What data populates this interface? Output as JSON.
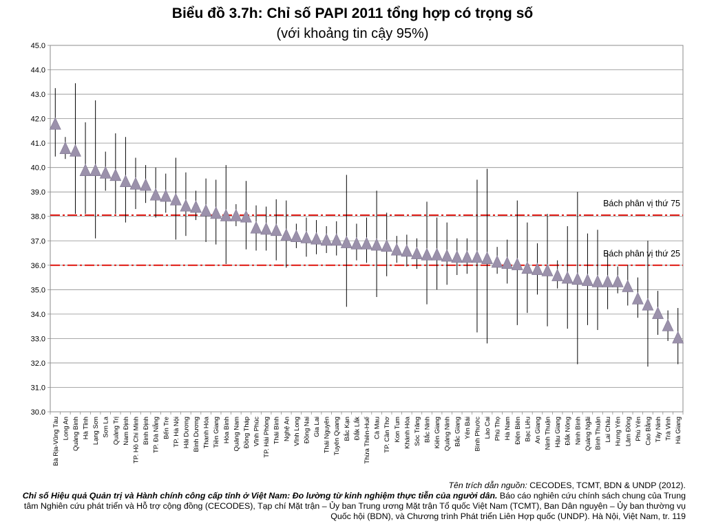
{
  "chart_data": {
    "type": "scatter",
    "title": "Biểu đồ 3.7h: Chỉ số PAPI 2011 tổng hợp có trọng số",
    "subtitle": "(với khoảng tin cậy 95%)",
    "ylim": [
      30,
      45
    ],
    "yticks": [
      "30.0",
      "31.0",
      "32.0",
      "33.0",
      "34.0",
      "35.0",
      "36.0",
      "37.0",
      "38.0",
      "39.0",
      "40.0",
      "41.0",
      "42.0",
      "43.0",
      "44.0",
      "45.0"
    ],
    "grid": true,
    "marker": "triangle",
    "marker_color": "#9b91ab",
    "errorbar_color": "#000000",
    "reference_color": "#e0201a",
    "reference_lines": [
      {
        "label": "Bách phân vị thứ 75",
        "y": 38.05
      },
      {
        "label": "Bách phân vị thứ 25",
        "y": 36.0
      }
    ],
    "points": [
      {
        "name": "Bà Rịa-Vũng Tàu",
        "y": 41.8,
        "lo": 40.45,
        "hi": 43.25
      },
      {
        "name": "Long An",
        "y": 40.8,
        "lo": 40.35,
        "hi": 41.25
      },
      {
        "name": "Quảng Bình",
        "y": 40.7,
        "lo": 38.1,
        "hi": 43.45
      },
      {
        "name": "Hà Tĩnh",
        "y": 39.9,
        "lo": 38.1,
        "hi": 41.85
      },
      {
        "name": "Lạng Sơn",
        "y": 39.9,
        "lo": 37.1,
        "hi": 42.75
      },
      {
        "name": "Sơn La",
        "y": 39.8,
        "lo": 39.05,
        "hi": 40.65
      },
      {
        "name": "Quảng Trị",
        "y": 39.7,
        "lo": 38.1,
        "hi": 41.4
      },
      {
        "name": "Nam Định",
        "y": 39.45,
        "lo": 37.75,
        "hi": 41.25
      },
      {
        "name": "TP. Hồ Chí Minh",
        "y": 39.35,
        "lo": 38.3,
        "hi": 40.4
      },
      {
        "name": "Bình Định",
        "y": 39.3,
        "lo": 38.55,
        "hi": 40.1
      },
      {
        "name": "TP. Đà Nẵng",
        "y": 38.9,
        "lo": 37.95,
        "hi": 40.0
      },
      {
        "name": "Bến Tre",
        "y": 38.85,
        "lo": 38.15,
        "hi": 39.75
      },
      {
        "name": "TP. Hà Nội",
        "y": 38.7,
        "lo": 37.05,
        "hi": 40.4
      },
      {
        "name": "Hải Dương",
        "y": 38.45,
        "lo": 37.2,
        "hi": 39.8
      },
      {
        "name": "Bình Dương",
        "y": 38.4,
        "lo": 37.85,
        "hi": 39.05
      },
      {
        "name": "Thanh Hóa",
        "y": 38.25,
        "lo": 36.95,
        "hi": 39.55
      },
      {
        "name": "Tiền Giang",
        "y": 38.15,
        "lo": 36.85,
        "hi": 39.5
      },
      {
        "name": "Hòa Bình",
        "y": 38.05,
        "lo": 36.05,
        "hi": 40.1
      },
      {
        "name": "Quảng Nam",
        "y": 38.05,
        "lo": 37.6,
        "hi": 38.5
      },
      {
        "name": "Đồng Tháp",
        "y": 38.0,
        "lo": 36.65,
        "hi": 39.45
      },
      {
        "name": "Vĩnh Phúc",
        "y": 37.55,
        "lo": 36.6,
        "hi": 38.45
      },
      {
        "name": "TP. Hải Phòng",
        "y": 37.5,
        "lo": 36.6,
        "hi": 38.4
      },
      {
        "name": "Thái Bình",
        "y": 37.45,
        "lo": 36.2,
        "hi": 38.7
      },
      {
        "name": "Nghệ An",
        "y": 37.25,
        "lo": 35.9,
        "hi": 38.65
      },
      {
        "name": "Vĩnh Long",
        "y": 37.2,
        "lo": 36.7,
        "hi": 37.7
      },
      {
        "name": "Đồng Nai",
        "y": 37.15,
        "lo": 36.35,
        "hi": 37.95
      },
      {
        "name": "Gia Lai",
        "y": 37.1,
        "lo": 36.45,
        "hi": 37.85
      },
      {
        "name": "Thái Nguyên",
        "y": 37.05,
        "lo": 36.5,
        "hi": 37.6
      },
      {
        "name": "Tuyên Quang",
        "y": 37.05,
        "lo": 36.4,
        "hi": 37.8
      },
      {
        "name": "Bắc Kạn",
        "y": 36.95,
        "lo": 34.3,
        "hi": 39.7
      },
      {
        "name": "Đắk Lắk",
        "y": 36.9,
        "lo": 36.2,
        "hi": 37.7
      },
      {
        "name": "Thừa Thiên-Huế",
        "y": 36.9,
        "lo": 36.1,
        "hi": 37.95
      },
      {
        "name": "Cà Mau",
        "y": 36.85,
        "lo": 34.7,
        "hi": 39.05
      },
      {
        "name": "TP. Cần Thơ",
        "y": 36.8,
        "lo": 35.55,
        "hi": 38.15
      },
      {
        "name": "Kon Tum",
        "y": 36.65,
        "lo": 36.1,
        "hi": 37.2
      },
      {
        "name": "Khánh Hòa",
        "y": 36.6,
        "lo": 35.95,
        "hi": 37.25
      },
      {
        "name": "Sóc Trăng",
        "y": 36.5,
        "lo": 35.85,
        "hi": 37.1
      },
      {
        "name": "Bắc Ninh",
        "y": 36.45,
        "lo": 34.4,
        "hi": 38.6
      },
      {
        "name": "Kiên Giang",
        "y": 36.45,
        "lo": 35.0,
        "hi": 37.95
      },
      {
        "name": "Quảng Ninh",
        "y": 36.4,
        "lo": 35.2,
        "hi": 37.75
      },
      {
        "name": "Bắc Giang",
        "y": 36.35,
        "lo": 35.6,
        "hi": 37.1
      },
      {
        "name": "Yên Bái",
        "y": 36.35,
        "lo": 35.65,
        "hi": 37.1
      },
      {
        "name": "Bình Phước",
        "y": 36.35,
        "lo": 33.25,
        "hi": 39.5
      },
      {
        "name": "Lào Cai",
        "y": 36.3,
        "lo": 32.8,
        "hi": 39.95
      },
      {
        "name": "Phú Thọ",
        "y": 36.15,
        "lo": 35.65,
        "hi": 36.75
      },
      {
        "name": "Hà Nam",
        "y": 36.1,
        "lo": 35.25,
        "hi": 37.05
      },
      {
        "name": "Điện Biên",
        "y": 36.05,
        "lo": 33.55,
        "hi": 38.65
      },
      {
        "name": "Bạc Liêu",
        "y": 35.9,
        "lo": 34.05,
        "hi": 37.75
      },
      {
        "name": "An Giang",
        "y": 35.85,
        "lo": 34.8,
        "hi": 36.9
      },
      {
        "name": "Ninh Thuận",
        "y": 35.8,
        "lo": 33.5,
        "hi": 38.1
      },
      {
        "name": "Hậu Giang",
        "y": 35.6,
        "lo": 35.05,
        "hi": 36.2
      },
      {
        "name": "Đắk Nông",
        "y": 35.5,
        "lo": 33.4,
        "hi": 37.6
      },
      {
        "name": "Ninh Bình",
        "y": 35.45,
        "lo": 31.95,
        "hi": 39.0
      },
      {
        "name": "Quảng Ngãi",
        "y": 35.4,
        "lo": 33.55,
        "hi": 37.3
      },
      {
        "name": "Bình Thuận",
        "y": 35.35,
        "lo": 33.35,
        "hi": 37.45
      },
      {
        "name": "Lai Châu",
        "y": 35.35,
        "lo": 34.2,
        "hi": 36.5
      },
      {
        "name": "Hưng Yên",
        "y": 35.35,
        "lo": 34.85,
        "hi": 35.95
      },
      {
        "name": "Lâm Đồng",
        "y": 35.15,
        "lo": 34.35,
        "hi": 36.0
      },
      {
        "name": "Phú Yên",
        "y": 34.65,
        "lo": 33.85,
        "hi": 35.5
      },
      {
        "name": "Cao Bằng",
        "y": 34.4,
        "lo": 31.85,
        "hi": 37.0
      },
      {
        "name": "Tây Ninh",
        "y": 34.05,
        "lo": 33.15,
        "hi": 34.95
      },
      {
        "name": "Trà Vinh",
        "y": 33.55,
        "lo": 32.9,
        "hi": 34.15
      },
      {
        "name": "Hà Giang",
        "y": 33.05,
        "lo": 31.95,
        "hi": 34.25
      }
    ]
  },
  "source": {
    "lead": "Tên trích dẫn nguồn:",
    "citation": " CECODES, TCMT, BDN & UNDP (2012).",
    "report_title": "Chỉ số Hiệu quả Quản trị và Hành chính công cấp tỉnh ở Việt Nam: Đo lường từ kinh nghiệm thực tiễn của người dân.",
    "report_rest": " Báo cáo nghiên cứu chính sách chung của Trung tâm Nghiên cứu phát triển và Hỗ trợ cộng đồng (CECODES), Tạp chí Mặt trận – Ủy ban Trung ương Mặt trận Tổ quốc Việt Nam (TCMT), Ban Dân nguyện – Ủy ban thường vụ Quốc hội (BDN), và Chương trình Phát triển Liên Hợp quốc (UNDP). Hà Nội, Việt Nam, tr. 119"
  }
}
